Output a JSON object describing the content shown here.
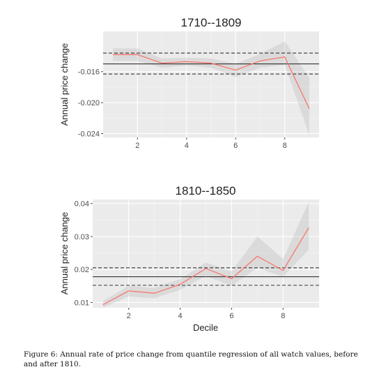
{
  "chart_data": [
    {
      "type": "line",
      "title": "1710--1809",
      "ylabel": "Annual price change",
      "xlabel": "",
      "x": [
        1,
        2,
        3,
        4,
        5,
        6,
        7,
        8,
        9
      ],
      "xlim": [
        0.6,
        9.4
      ],
      "ylim": [
        -0.0245,
        -0.0108
      ],
      "xticks": [
        2,
        4,
        6,
        8
      ],
      "xtick_labels": [
        "2",
        "4",
        "6",
        "8"
      ],
      "yticks": [
        -0.024,
        -0.02,
        -0.016
      ],
      "ytick_labels": [
        "-0.024",
        "-0.020",
        "-0.016"
      ],
      "series": [
        {
          "values": [
            -0.0138,
            -0.0138,
            -0.0149,
            -0.0147,
            -0.0149,
            -0.0158,
            -0.0146,
            -0.0141,
            -0.0208
          ],
          "ci_low": [
            -0.0146,
            -0.0146,
            -0.0155,
            -0.0152,
            -0.0155,
            -0.0167,
            -0.0155,
            -0.0151,
            -0.0242
          ],
          "ci_high": [
            -0.013,
            -0.013,
            -0.0143,
            -0.0142,
            -0.0143,
            -0.015,
            -0.0137,
            -0.0121,
            -0.0168
          ],
          "color": "#f8766d"
        }
      ],
      "hlines": [
        {
          "value": -0.015,
          "style": "solid"
        },
        {
          "value": -0.0136,
          "style": "dashed"
        },
        {
          "value": -0.0163,
          "style": "dashed"
        }
      ],
      "grid": true
    },
    {
      "type": "line",
      "title": "1810--1850",
      "ylabel": "Annual price change",
      "xlabel": "Decile",
      "x": [
        1,
        2,
        3,
        4,
        5,
        6,
        7,
        8,
        9
      ],
      "xlim": [
        0.6,
        9.4
      ],
      "ylim": [
        0.0084,
        0.0412
      ],
      "xticks": [
        2,
        4,
        6,
        8
      ],
      "xtick_labels": [
        "2",
        "4",
        "6",
        "8"
      ],
      "yticks": [
        0.01,
        0.02,
        0.03,
        0.04
      ],
      "ytick_labels": [
        "0.01",
        "0.02",
        "0.03",
        "0.04"
      ],
      "series": [
        {
          "values": [
            0.0093,
            0.0135,
            0.0128,
            0.0155,
            0.0203,
            0.0172,
            0.024,
            0.0197,
            0.0327
          ],
          "ci_low": [
            0.0084,
            0.0118,
            0.0113,
            0.0138,
            0.0181,
            0.015,
            0.0205,
            0.0178,
            0.026
          ],
          "ci_high": [
            0.0104,
            0.015,
            0.0144,
            0.0171,
            0.0221,
            0.0194,
            0.03,
            0.0232,
            0.0405
          ],
          "color": "#f8766d"
        }
      ],
      "hlines": [
        {
          "value": 0.0178,
          "style": "solid"
        },
        {
          "value": 0.0205,
          "style": "dashed"
        },
        {
          "value": 0.0152,
          "style": "dashed"
        }
      ],
      "grid": true
    }
  ],
  "caption": "Figure 6: Annual rate of price change from quantile regression of all watch values, before and after 1810."
}
